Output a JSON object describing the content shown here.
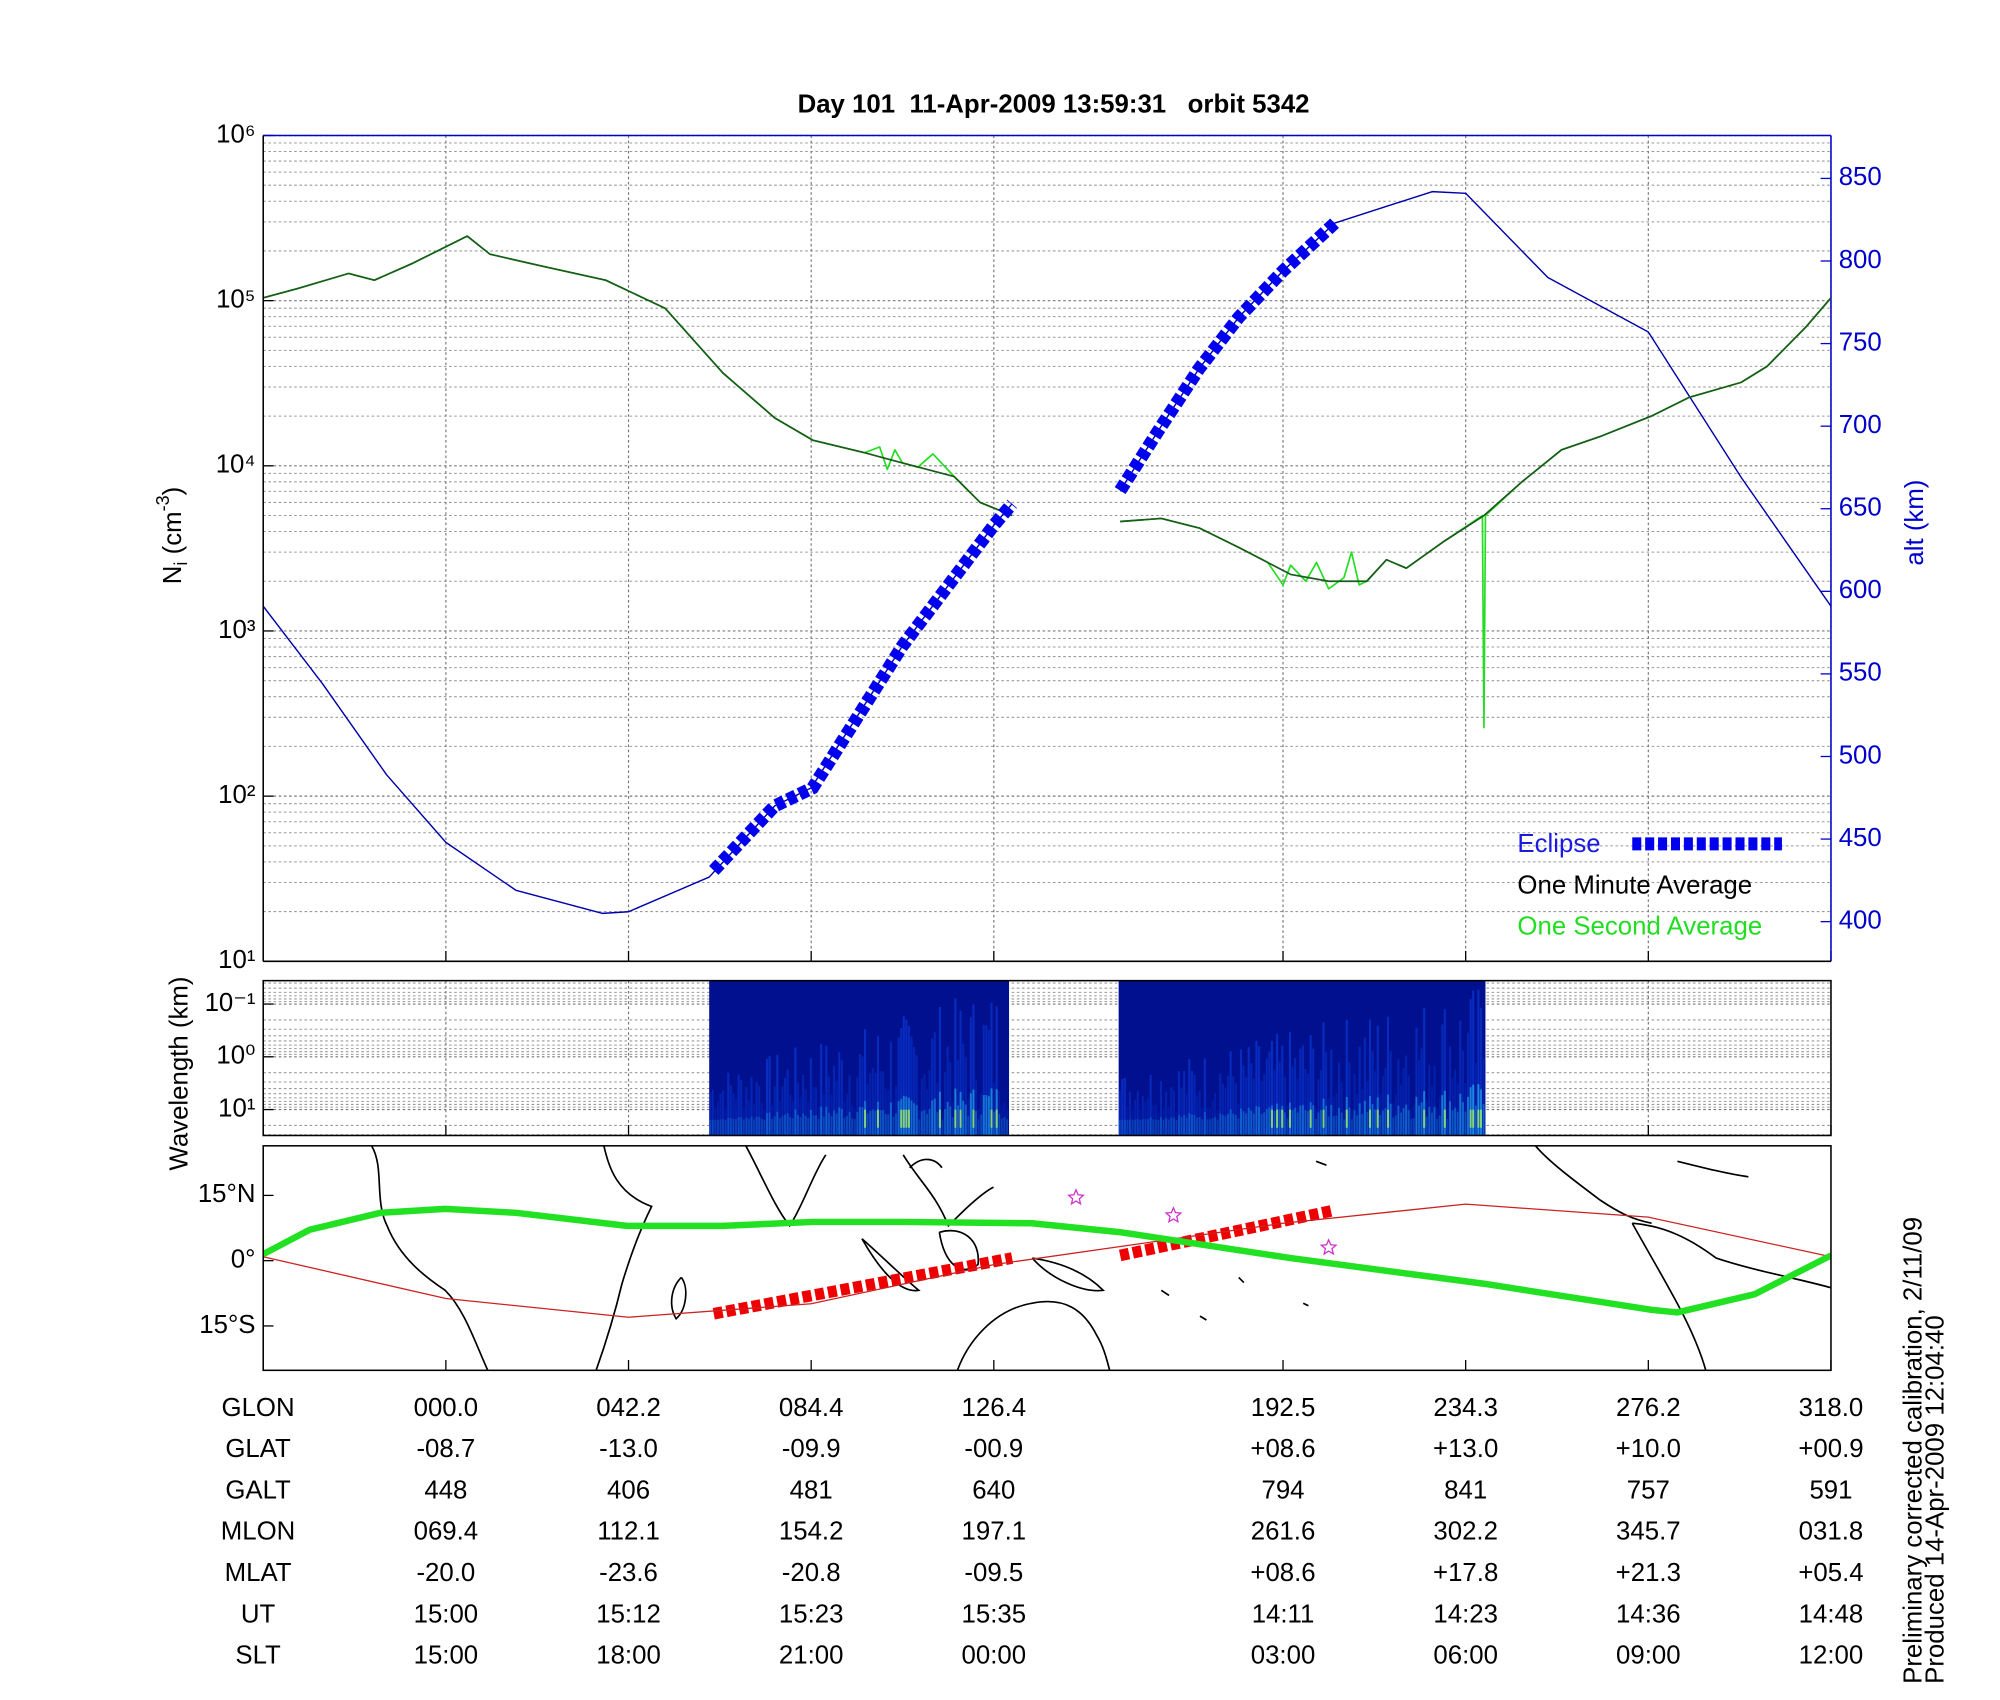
{
  "chart_data": [
    {
      "type": "line",
      "title": "Day 101  11-Apr-2009 13:59:31   orbit 5342",
      "ylabel_parts": [
        "N",
        "i",
        " (cm",
        "-3",
        ")"
      ],
      "y2label": "alt (km)",
      "xlim": [
        0,
        103
      ],
      "xticks": [
        12,
        24,
        36,
        48,
        67,
        79,
        91,
        103
      ],
      "yscale": "log",
      "ylim": [
        10,
        1000000
      ],
      "yticks": [
        {
          "value": 10,
          "label": "10¹"
        },
        {
          "value": 100,
          "label": "10²"
        },
        {
          "value": 1000,
          "label": "10³"
        },
        {
          "value": 10000,
          "label": "10⁴"
        },
        {
          "value": 100000,
          "label": "10⁵"
        },
        {
          "value": 1000000,
          "label": "10⁶"
        }
      ],
      "y2lim": [
        376,
        876
      ],
      "y2ticks": [
        400,
        450,
        500,
        550,
        600,
        650,
        700,
        750,
        800,
        850
      ],
      "y2color": "#0000cc",
      "grid": true,
      "legend": "lower right",
      "series": [
        {
          "name": "Eclipse",
          "color": "#0000ee",
          "legend_color": "#1a1ae0",
          "dash": true,
          "linewidth": 10,
          "axis": "y2",
          "x": [
            29.6,
            33.6,
            36.1,
            42,
            48,
            49.2,
            52,
            56.3,
            59,
            61.5,
            64.1,
            67,
            70.4
          ],
          "values": [
            431,
            470,
            481,
            567,
            640,
            653,
            null,
            661,
            700,
            735,
            766,
            794,
            823
          ]
        },
        {
          "name": "One Minute Average",
          "color": "#1a5a1a",
          "legend_color": "#000000",
          "linewidth": 1.3,
          "x": [
            0,
            2.2,
            5.6,
            7.3,
            9.8,
            13.4,
            14.9,
            18.3,
            22.5,
            26.4,
            30.2,
            33.6,
            36.1,
            39.5,
            42,
            45.4,
            47.1,
            49.2,
            52,
            56.3,
            59,
            61.5,
            64.1,
            67.5,
            70,
            72.5,
            73.8,
            75.1,
            77.6,
            80.2,
            82.7,
            85.3,
            87.8,
            91.2,
            93.7,
            97.1,
            98.8,
            101.4,
            103
          ],
          "values": [
            104000,
            118000,
            146000,
            133000,
            168000,
            246000,
            191000,
            162000,
            133000,
            90000,
            36500,
            19500,
            14300,
            12000,
            10400,
            8600,
            6000,
            5000,
            null,
            4600,
            4800,
            4200,
            3200,
            2200,
            2000,
            2000,
            2700,
            2400,
            3500,
            5000,
            8000,
            12500,
            15000,
            20000,
            26000,
            32000,
            40000,
            70000,
            104000
          ]
        },
        {
          "name": "One Second Average",
          "color": "#22dd22",
          "legend_color": "#22dd22",
          "linewidth": 1.3,
          "x": [
            0,
            2.2,
            5.6,
            7.3,
            9.8,
            13.4,
            14.9,
            18.3,
            22.5,
            26.4,
            30.2,
            33.6,
            36.1,
            39.5,
            40.5,
            41,
            41.5,
            42,
            43,
            44,
            45.4,
            47.1,
            49.2,
            52,
            56.3,
            59,
            61.5,
            64.1,
            66,
            67,
            67.5,
            68.5,
            69.2,
            70,
            71,
            71.5,
            72,
            72.5,
            73.8,
            75.1,
            77.6,
            80.1,
            80.2,
            80.3,
            82.7,
            85.3,
            87.8,
            91.2,
            93.7,
            97.1,
            98.8,
            101.4,
            103
          ],
          "values": [
            104000,
            118000,
            146000,
            133000,
            168000,
            246000,
            191000,
            162000,
            133000,
            90000,
            36500,
            19500,
            14300,
            12000,
            13000,
            9500,
            12500,
            10400,
            9800,
            11800,
            8600,
            6000,
            5000,
            null,
            4600,
            4800,
            4200,
            3200,
            2600,
            1900,
            2500,
            2000,
            2600,
            1800,
            2100,
            3000,
            1900,
            2000,
            2700,
            2400,
            3500,
            5000,
            260,
            5000,
            8000,
            12500,
            15000,
            20000,
            26000,
            32000,
            40000,
            70000,
            104000
          ]
        },
        {
          "color": "#0000aa",
          "linewidth": 1.1,
          "axis": "y2",
          "x": [
            0,
            3.9,
            8.1,
            12,
            16.6,
            22.3,
            24,
            29.3,
            33.6,
            36,
            42,
            48,
            49.2,
            52,
            56.3,
            59,
            61.5,
            64.1,
            67,
            70.4,
            76.8,
            79,
            84.4,
            91,
            97.1,
            103
          ],
          "values": [
            591,
            544,
            489,
            448,
            419,
            405,
            406,
            427,
            470,
            481,
            567,
            640,
            653,
            null,
            661,
            700,
            735,
            766,
            794,
            823,
            842,
            841,
            790,
            757,
            669,
            591
          ]
        }
      ]
    },
    {
      "type": "spectrogram",
      "ylabel": "Wavelength (km)",
      "xlim": [
        0,
        103
      ],
      "xticks": [
        12,
        24,
        36,
        48,
        67,
        79,
        91,
        103
      ],
      "yscale": "log",
      "ylim": [
        31,
        0.036
      ],
      "yticks": [
        {
          "value": 0.1,
          "label": "10⁻¹"
        },
        {
          "value": 1,
          "label": "10⁰"
        },
        {
          "value": 10,
          "label": "10¹"
        }
      ],
      "grid": true,
      "segments": [
        [
          29.3,
          49.0
        ],
        [
          56.2,
          80.3
        ]
      ],
      "colors": [
        "#00108e",
        "#0a3cdc",
        "#1ea0e6",
        "#9be86a"
      ]
    },
    {
      "type": "line",
      "xlim": [
        0,
        103
      ],
      "xticks": [
        12,
        24,
        36,
        48,
        67,
        79,
        91,
        103
      ],
      "ylim": [
        -25.2,
        26.4
      ],
      "yticks": [
        {
          "value": 15,
          "label": "15°N"
        },
        {
          "value": 0,
          "label": "0°"
        },
        {
          "value": -15,
          "label": "15°S"
        }
      ],
      "series": [
        {
          "color": "#22e022",
          "linewidth": 5,
          "x": [
            0,
            3.05,
            7.7,
            11.95,
            16.6,
            23.9,
            30.2,
            36.1,
            42,
            50.5,
            56.4,
            67.5,
            80.2,
            91.2,
            92.9,
            98,
            103
          ],
          "values": [
            1.5,
            7.1,
            11,
            11.9,
            11,
            8,
            8,
            8.9,
            8.9,
            8.6,
            6.5,
            0.6,
            -5.3,
            -11.3,
            -11.9,
            -7.7,
            1.2
          ]
        },
        {
          "color": "#cc2222",
          "linewidth": 1,
          "x": [
            0,
            12,
            24,
            36,
            48,
            67,
            79,
            91,
            103
          ],
          "values": [
            0.9,
            -8.7,
            -13,
            -9.9,
            -0.9,
            8.6,
            13,
            10,
            0.9
          ]
        },
        {
          "color": "#ee0000",
          "dash": true,
          "linewidth": 9,
          "x": [
            29.6,
            49.2,
            52,
            56.3,
            70.4
          ],
          "values": [
            -12.2,
            0.6,
            null,
            1.2,
            11.6
          ]
        }
      ],
      "markers": {
        "x": [
          53.4,
          59.8,
          70
        ],
        "values": [
          14.5,
          10.4,
          3
        ],
        "color": "#cc33cc"
      }
    }
  ],
  "table": {
    "row_labels": [
      "GLON",
      "GLAT",
      "GALT",
      "MLON",
      "MLAT",
      "UT",
      "SLT"
    ],
    "rows": [
      [
        "000.0",
        "042.2",
        "084.4",
        "126.4",
        "192.5",
        "234.3",
        "276.2",
        "318.0"
      ],
      [
        "-08.7",
        "-13.0",
        "-09.9",
        "-00.9",
        "+08.6",
        "+13.0",
        "+10.0",
        "+00.9"
      ],
      [
        "448",
        "406",
        "481",
        "640",
        "794",
        "841",
        "757",
        "591"
      ],
      [
        "069.4",
        "112.1",
        "154.2",
        "197.1",
        "261.6",
        "302.2",
        "345.7",
        "031.8"
      ],
      [
        "-20.0",
        "-23.6",
        "-20.8",
        "-09.5",
        "+08.6",
        "+17.8",
        "+21.3",
        "+05.4"
      ],
      [
        "15:00",
        "15:12",
        "15:23",
        "15:35",
        "14:11",
        "14:23",
        "14:36",
        "14:48"
      ],
      [
        "15:00",
        "18:00",
        "21:00",
        "00:00",
        "03:00",
        "06:00",
        "09:00",
        "12:00"
      ]
    ]
  },
  "notes": [
    "Preliminary corrected calibration, 2/11/09",
    "Produced 14-Apr-2009 12:04:40"
  ]
}
